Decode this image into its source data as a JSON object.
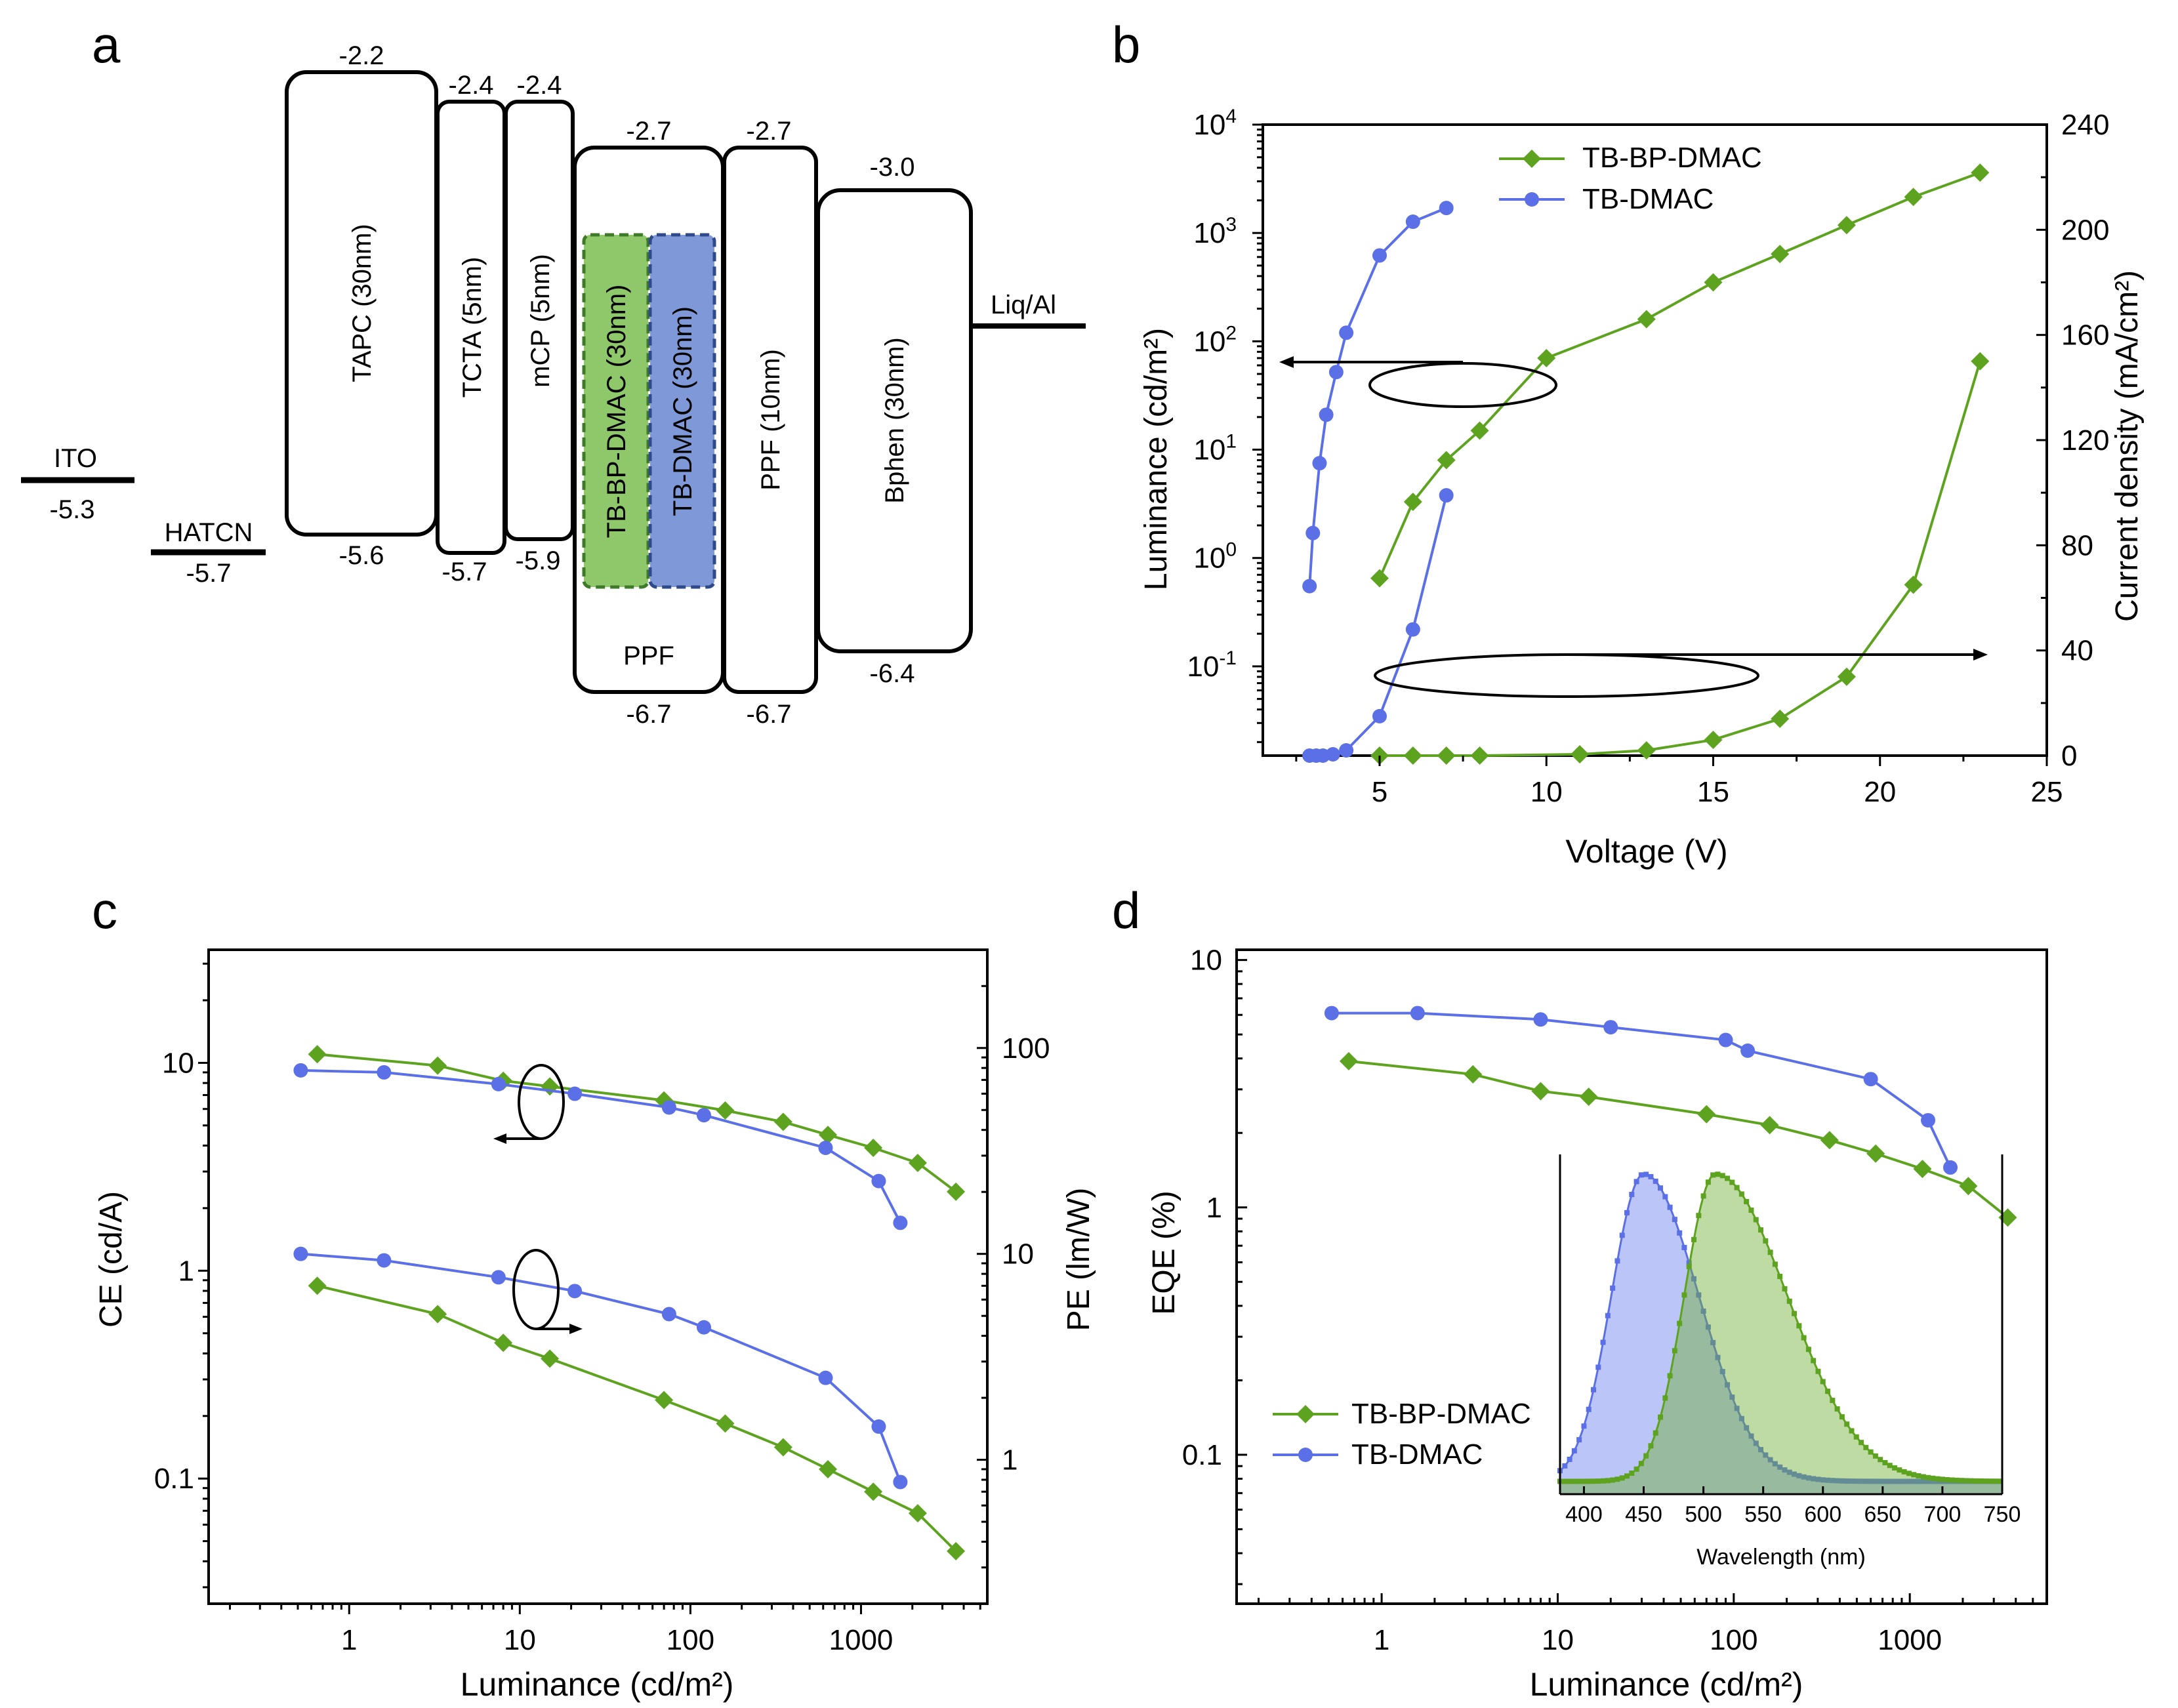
{
  "panels": {
    "a": {
      "letter": "a",
      "levels": [
        {
          "id": "ito",
          "name": "ITO",
          "value": "-5.3"
        },
        {
          "id": "hatcn",
          "name": "HATCN",
          "value": "-5.7"
        },
        {
          "id": "liq",
          "name": "Liq/Al"
        }
      ],
      "layers": [
        {
          "id": "tapc",
          "name": "TAPC (30nm)",
          "lumo": "-2.2",
          "homo": "-5.6"
        },
        {
          "id": "tcta",
          "name": "TCTA (5nm)",
          "lumo": "-2.4",
          "homo": "-5.7"
        },
        {
          "id": "mcp",
          "name": "mCP (5nm)",
          "lumo": "-2.4",
          "homo": "-5.9"
        },
        {
          "id": "ppf-host",
          "name": "PPF",
          "lumo": "-2.7",
          "homo": "-6.7"
        },
        {
          "id": "ppf",
          "name": "PPF (10nm)",
          "lumo": "-2.7",
          "homo": "-6.7"
        },
        {
          "id": "bphen",
          "name": "Bphen (30nm)",
          "lumo": "-3.0",
          "homo": "-6.4"
        }
      ],
      "emitters": [
        {
          "id": "tb-bp-dmac",
          "name": "TB-BP-DMAC (30nm)",
          "color": "#8fc86a"
        },
        {
          "id": "tb-dmac",
          "name": "TB-DMAC (30nm)",
          "color": "#7f98d8"
        }
      ]
    },
    "b": {
      "letter": "b"
    },
    "c": {
      "letter": "c"
    },
    "d": {
      "letter": "d"
    }
  },
  "colors": {
    "tbbp": "#5ea320",
    "tb": "#5b6fe6"
  },
  "chart_data": [
    {
      "id": "b",
      "type": "line",
      "xlabel": "Voltage (V)",
      "ylabel": "Luminance (cd/m²)",
      "y2label": "Current density (mA/cm²)",
      "xlim": [
        1.5,
        25
      ],
      "ylim_log": [
        0.015,
        10000
      ],
      "y2lim": [
        0,
        240
      ],
      "xticks": [
        "5",
        "10",
        "15",
        "20",
        "25"
      ],
      "yticks": [
        {
          "b": "10",
          "e": "-1"
        },
        {
          "b": "10",
          "e": "0"
        },
        {
          "b": "10",
          "e": "1"
        },
        {
          "b": "10",
          "e": "2"
        },
        {
          "b": "10",
          "e": "3"
        },
        {
          "b": "10",
          "e": "4"
        }
      ],
      "y2ticks": [
        "0",
        "40",
        "80",
        "120",
        "160",
        "200",
        "240"
      ],
      "legend": [
        "TB-BP-DMAC",
        "TB-DMAC"
      ],
      "series": [
        {
          "name": "TB-BP-DMAC luminance",
          "axis": "left",
          "marker": "diamond",
          "x": [
            5,
            6,
            7,
            8,
            10,
            13,
            15,
            17,
            19,
            21,
            23
          ],
          "y": [
            0.65,
            3.3,
            8,
            15,
            70,
            160,
            350,
            640,
            1180,
            2150,
            3600
          ]
        },
        {
          "name": "TB-DMAC luminance",
          "axis": "left",
          "marker": "circle",
          "x": [
            2.9,
            3,
            3.2,
            3.4,
            3.7,
            4,
            5,
            6,
            7
          ],
          "y": [
            0.55,
            1.7,
            7.5,
            21,
            52,
            120,
            620,
            1270,
            1700
          ]
        },
        {
          "name": "TB-BP-DMAC current density",
          "axis": "right",
          "marker": "diamond",
          "x": [
            5,
            6,
            7,
            8,
            11,
            13,
            15,
            17,
            19,
            21,
            23
          ],
          "y": [
            0,
            0,
            0,
            0,
            0.5,
            2,
            6,
            14,
            30,
            65,
            150
          ]
        },
        {
          "name": "TB-DMAC current density",
          "axis": "right",
          "marker": "circle",
          "x": [
            2.9,
            3.1,
            3.3,
            3.6,
            4,
            5,
            6,
            7
          ],
          "y": [
            0,
            0,
            0,
            0.5,
            2,
            15,
            48,
            99
          ]
        }
      ]
    },
    {
      "id": "c",
      "type": "line",
      "xlabel": "Luminance (cd/m²)",
      "ylabel": "CE (cd/A)",
      "y2label": "PE (lm/W)",
      "xlim_log": [
        0.15,
        5500
      ],
      "ylim_log": [
        0.025,
        35
      ],
      "y2lim_log": [
        0.2,
        300
      ],
      "xticks": [
        "1",
        "10",
        "100",
        "1000"
      ],
      "yticks": [
        "0.1",
        "1",
        "10"
      ],
      "y2ticks": [
        "1",
        "10",
        "100"
      ],
      "series": [
        {
          "name": "TB-BP-DMAC CE",
          "axis": "left",
          "marker": "diamond",
          "x": [
            0.65,
            3.3,
            8,
            15,
            70,
            160,
            350,
            640,
            1180,
            2150,
            3600
          ],
          "y": [
            11,
            9.7,
            8.2,
            7.7,
            6.6,
            5.9,
            5.2,
            4.5,
            3.9,
            3.3,
            2.4
          ]
        },
        {
          "name": "TB-DMAC CE",
          "axis": "left",
          "marker": "circle",
          "x": [
            0.52,
            1.6,
            7.5,
            21,
            75,
            120,
            620,
            1270,
            1700
          ],
          "y": [
            9.2,
            9,
            7.9,
            7.1,
            6.1,
            5.6,
            3.9,
            2.7,
            1.7
          ]
        },
        {
          "name": "TB-BP-DMAC PE",
          "axis": "right",
          "marker": "diamond",
          "x": [
            0.65,
            3.3,
            8,
            15,
            70,
            160,
            350,
            640,
            1180,
            2150,
            3600
          ],
          "y": [
            7,
            5.1,
            3.7,
            3.1,
            1.95,
            1.5,
            1.15,
            0.9,
            0.7,
            0.55,
            0.36
          ]
        },
        {
          "name": "TB-DMAC PE",
          "axis": "right",
          "marker": "circle",
          "x": [
            0.52,
            1.6,
            7.5,
            21,
            75,
            120,
            620,
            1270,
            1700
          ],
          "y": [
            10,
            9.3,
            7.7,
            6.6,
            5.1,
            4.4,
            2.5,
            1.45,
            0.78
          ]
        }
      ]
    },
    {
      "id": "d",
      "type": "line",
      "xlabel": "Luminance (cd/m²)",
      "ylabel": "EQE (%)",
      "xlim_log": [
        0.15,
        6000
      ],
      "ylim_log": [
        0.025,
        11
      ],
      "xticks": [
        "1",
        "10",
        "100",
        "1000"
      ],
      "yticks": [
        "0.1",
        "1",
        "10"
      ],
      "legend": [
        "TB-BP-DMAC",
        "TB-DMAC"
      ],
      "series": [
        {
          "name": "TB-BP-DMAC",
          "marker": "diamond",
          "x": [
            0.65,
            3.3,
            8,
            15,
            70,
            160,
            350,
            640,
            1180,
            2150,
            3600
          ],
          "y": [
            3.9,
            3.45,
            2.95,
            2.8,
            2.38,
            2.15,
            1.87,
            1.65,
            1.43,
            1.22,
            0.91
          ]
        },
        {
          "name": "TB-DMAC",
          "marker": "circle",
          "x": [
            0.52,
            1.6,
            8,
            20,
            90,
            120,
            600,
            1270,
            1700
          ],
          "y": [
            6.1,
            6.1,
            5.75,
            5.35,
            4.75,
            4.3,
            3.3,
            2.25,
            1.45
          ]
        }
      ],
      "inset": {
        "type": "area",
        "xlabel": "Wavelength (nm)",
        "xlim": [
          380,
          750
        ],
        "xticks": [
          "400",
          "450",
          "500",
          "550",
          "600",
          "650",
          "700",
          "750"
        ],
        "series": [
          {
            "name": "TB-DMAC EL",
            "peak": 450,
            "left_width": 27,
            "right_width": 46,
            "baseline": 0.04
          },
          {
            "name": "TB-BP-DMAC EL",
            "peak": 510,
            "left_width": 26,
            "right_width": 60,
            "baseline": 0.04
          }
        ]
      }
    }
  ]
}
